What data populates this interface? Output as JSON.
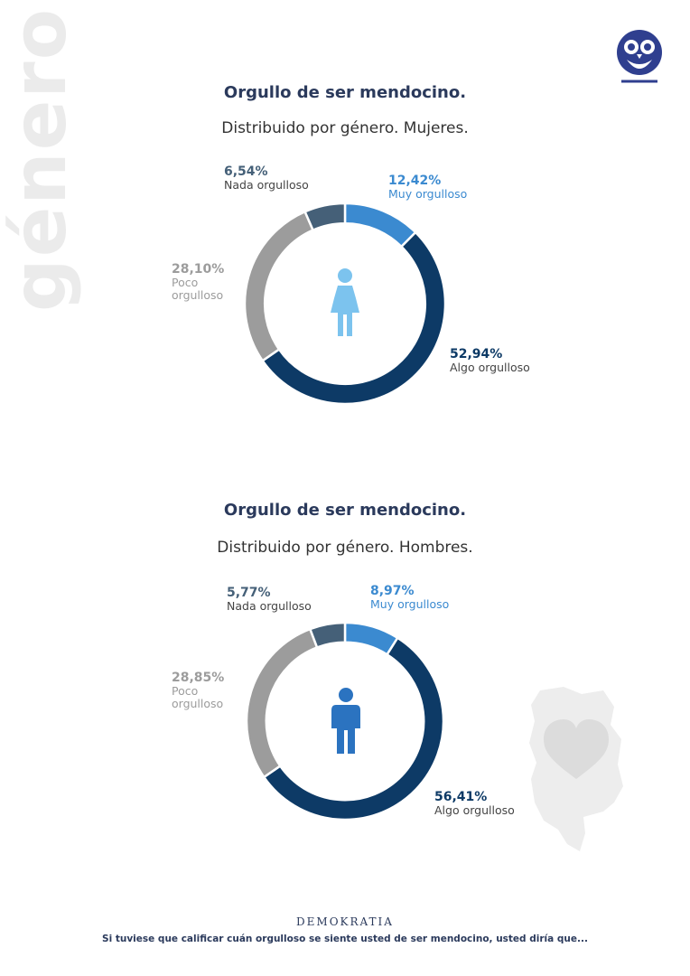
{
  "side_label": "género",
  "brand": "DEMOKRATIA",
  "footnote": "Si tuviese que calificar cuán orgulloso se siente usted de ser mendocino, usted diría que...",
  "colors": {
    "muy": "#3b8ad0",
    "algo": "#0d3a66",
    "poco": "#9c9c9c",
    "nada": "#456078",
    "woman_icon": "#7cc3ee",
    "man_icon": "#2b73c0"
  },
  "icons": [
    "owl-logo-icon",
    "woman-icon",
    "man-icon",
    "mendoza-heart-map-icon"
  ],
  "chart_data": [
    {
      "type": "pie",
      "title": "Orgullo de ser mendocino.",
      "subtitle": "Distribuido por género. Mujeres.",
      "categories": [
        "Muy orgulloso",
        "Algo orgulloso",
        "Poco orgulloso",
        "Nada orgulloso"
      ],
      "values": [
        12.42,
        52.94,
        28.1,
        6.54
      ],
      "value_labels": [
        "12,42%",
        "52,94%",
        "28,10%",
        "6,54%"
      ]
    },
    {
      "type": "pie",
      "title": "Orgullo de ser mendocino.",
      "subtitle": "Distribuido por género. Hombres.",
      "categories": [
        "Muy orgulloso",
        "Algo orgulloso",
        "Poco orgulloso",
        "Nada orgulloso"
      ],
      "values": [
        8.97,
        56.41,
        28.85,
        5.77
      ],
      "value_labels": [
        "8,97%",
        "56,41%",
        "28,85%",
        "5,77%"
      ]
    }
  ]
}
